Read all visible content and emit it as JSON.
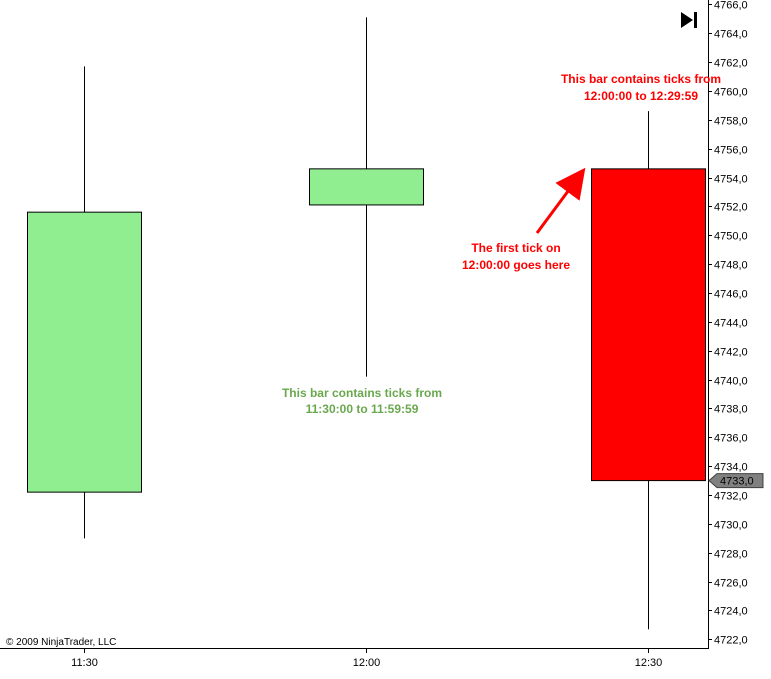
{
  "chart_data": {
    "type": "candlestick",
    "categories": [
      "11:30",
      "12:00",
      "12:30"
    ],
    "candles": [
      {
        "time": "11:30",
        "open": 4732.2,
        "high": 4761.7,
        "low": 4729.0,
        "close": 4751.6,
        "color": "#90EE90"
      },
      {
        "time": "12:00",
        "open": 4752.1,
        "high": 4765.1,
        "low": 4740.2,
        "close": 4754.6,
        "color": "#90EE90"
      },
      {
        "time": "12:30",
        "open": 4754.6,
        "high": 4758.6,
        "low": 4722.7,
        "close": 4733.0,
        "color": "#FF0000"
      }
    ],
    "ylim": [
      4721.4,
      4766.3
    ],
    "y_ticks": [
      "4722,0",
      "4724,0",
      "4726,0",
      "4728,0",
      "4730,0",
      "4732,0",
      "4734,0",
      "4736,0",
      "4738,0",
      "4740,0",
      "4742,0",
      "4744,0",
      "4746,0",
      "4748,0",
      "4750,0",
      "4752,0",
      "4754,0",
      "4756,0",
      "4758,0",
      "4760,0",
      "4762,0",
      "4764,0",
      "4766,0"
    ],
    "y_tick_values": [
      4722,
      4724,
      4726,
      4728,
      4730,
      4732,
      4734,
      4736,
      4738,
      4740,
      4742,
      4744,
      4746,
      4748,
      4750,
      4752,
      4754,
      4756,
      4758,
      4760,
      4762,
      4764,
      4766
    ],
    "current_price_label": "4733,0",
    "current_price": 4733.0,
    "grid": false,
    "annotations": {
      "green_note": [
        "This bar contains ticks from",
        "11:30:00 to 11:59:59"
      ],
      "red_note": [
        "This bar contains ticks from",
        "12:00:00 to 12:29:59"
      ],
      "arrow_note": [
        "The first tick on",
        "12:00:00 goes here"
      ]
    },
    "annotation_colors": {
      "green": "#6AA84F",
      "red": "#FF0000"
    },
    "copyright": "© 2009 NinjaTrader, LLC"
  }
}
